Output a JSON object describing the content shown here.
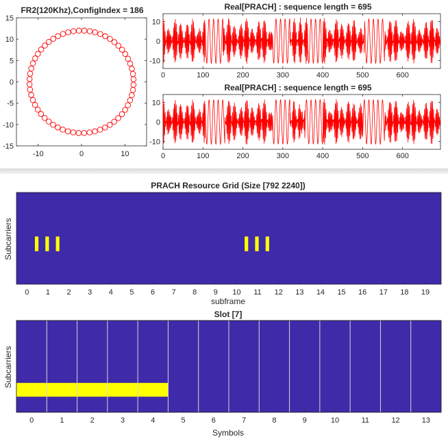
{
  "chart_data": [
    {
      "id": "scatter",
      "type": "scatter",
      "title": "FR2(120Khz),ConfigIndex = 186",
      "xlim": [
        -15,
        15
      ],
      "ylim": [
        -15,
        15
      ],
      "xticks": [
        -10,
        0,
        10
      ],
      "yticks": [
        -15,
        -10,
        -5,
        0,
        5,
        10,
        15
      ],
      "marker": "circle",
      "color": "#ff0000",
      "radius": 12,
      "num_points": 60
    },
    {
      "id": "line1",
      "type": "line",
      "title": "Real[PRACH] : sequence length = 695",
      "xlim": [
        0,
        695
      ],
      "ylim": [
        -14,
        14
      ],
      "xticks": [
        0,
        100,
        200,
        300,
        400,
        500,
        600
      ],
      "yticks": [
        -10,
        0,
        10
      ],
      "color": "#ff0000",
      "amplitude": 12,
      "segments": [
        {
          "x0": 0,
          "x1": 105,
          "kind": "burst"
        },
        {
          "x0": 105,
          "x1": 150,
          "kind": "smooth"
        },
        {
          "x0": 150,
          "x1": 275,
          "kind": "burst"
        },
        {
          "x0": 275,
          "x1": 318,
          "kind": "smooth"
        },
        {
          "x0": 318,
          "x1": 363,
          "kind": "burst"
        },
        {
          "x0": 363,
          "x1": 400,
          "kind": "smooth"
        },
        {
          "x0": 400,
          "x1": 505,
          "kind": "burst"
        },
        {
          "x0": 505,
          "x1": 555,
          "kind": "smooth"
        },
        {
          "x0": 555,
          "x1": 695,
          "kind": "burst"
        }
      ]
    },
    {
      "id": "line2",
      "type": "line",
      "title": "Real[PRACH] : sequence length = 695",
      "xlim": [
        0,
        695
      ],
      "ylim": [
        -14,
        14
      ],
      "xticks": [
        0,
        100,
        200,
        300,
        400,
        500,
        600
      ],
      "yticks": [
        -10,
        0,
        10
      ],
      "color": "#ff0000",
      "amplitude": 12,
      "segments": [
        {
          "x0": 0,
          "x1": 105,
          "kind": "burst"
        },
        {
          "x0": 105,
          "x1": 155,
          "kind": "smooth"
        },
        {
          "x0": 155,
          "x1": 275,
          "kind": "burst"
        },
        {
          "x0": 275,
          "x1": 318,
          "kind": "smooth"
        },
        {
          "x0": 318,
          "x1": 355,
          "kind": "burst"
        },
        {
          "x0": 355,
          "x1": 400,
          "kind": "smooth"
        },
        {
          "x0": 400,
          "x1": 500,
          "kind": "burst"
        },
        {
          "x0": 500,
          "x1": 555,
          "kind": "smooth"
        },
        {
          "x0": 555,
          "x1": 695,
          "kind": "burst"
        }
      ]
    },
    {
      "id": "grid",
      "type": "heatmap",
      "title": "PRACH Resource Grid (Size [792 2240])",
      "xlabel": "subframe",
      "ylabel": "Subcarriers",
      "xlim": [
        -0.5,
        19.75
      ],
      "xticks": [
        0,
        1,
        2,
        3,
        4,
        5,
        6,
        7,
        8,
        9,
        10,
        11,
        12,
        13,
        14,
        15,
        16,
        17,
        18,
        19
      ],
      "background_color": "#3f2aa9",
      "highlight_color": "#ffff00",
      "ylim_fraction": [
        0,
        1
      ],
      "occupied": [
        {
          "x0": 0.38,
          "x1": 0.55,
          "y0": 0.36,
          "y1": 0.52
        },
        {
          "x0": 0.88,
          "x1": 1.05,
          "y0": 0.36,
          "y1": 0.52
        },
        {
          "x0": 1.38,
          "x1": 1.55,
          "y0": 0.36,
          "y1": 0.52
        },
        {
          "x0": 10.38,
          "x1": 10.55,
          "y0": 0.36,
          "y1": 0.52
        },
        {
          "x0": 10.88,
          "x1": 11.05,
          "y0": 0.36,
          "y1": 0.52
        },
        {
          "x0": 11.38,
          "x1": 11.55,
          "y0": 0.36,
          "y1": 0.52
        }
      ]
    },
    {
      "id": "slot",
      "type": "heatmap",
      "title": "Slot [7]",
      "xlabel": "Symbols",
      "ylabel": "Subcarriers",
      "xlim": [
        -0.5,
        13.5
      ],
      "xticks": [
        0,
        1,
        2,
        3,
        4,
        5,
        6,
        7,
        8,
        9,
        10,
        11,
        12,
        13
      ],
      "background_color": "#3f2aa9",
      "highlight_color": "#ffff00",
      "divider_color": "#d8d8d8",
      "dividers": [
        0.5,
        1.5,
        2.5,
        3.5,
        4.5,
        5.5,
        6.5,
        7.5,
        8.5,
        9.5,
        10.5,
        11.5,
        12.5
      ],
      "occupied": [
        {
          "x0": -0.5,
          "x1": 4.5,
          "y0": 0.17,
          "y1": 0.32
        }
      ]
    }
  ]
}
